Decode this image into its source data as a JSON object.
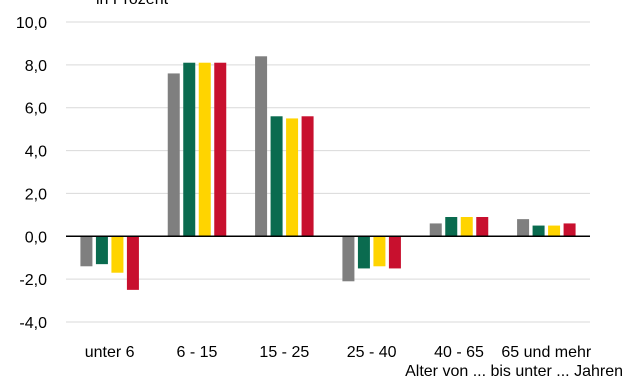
{
  "chart_data": {
    "type": "bar",
    "title": "in Prozent",
    "xlabel": "Alter von ... bis unter ... Jahren",
    "ylabel": "",
    "categories": [
      "unter 6",
      "6 - 15",
      "15 - 25",
      "25 - 40",
      "40 - 65",
      "65 und mehr"
    ],
    "series": [
      {
        "color": "#7f7f7f",
        "values": [
          -1.4,
          7.6,
          8.4,
          -2.1,
          0.6,
          0.8
        ]
      },
      {
        "color": "#0a6b4f",
        "values": [
          -1.3,
          8.1,
          5.6,
          -1.5,
          0.9,
          0.5
        ]
      },
      {
        "color": "#ffd400",
        "values": [
          -1.7,
          8.1,
          5.5,
          -1.4,
          0.9,
          0.5
        ]
      },
      {
        "color": "#c8102e",
        "values": [
          -2.5,
          8.1,
          5.6,
          -1.5,
          0.9,
          0.6
        ]
      }
    ],
    "ylim": [
      -4.0,
      10.0
    ],
    "yticks": [
      "10,0",
      "8,0",
      "6,0",
      "4,0",
      "2,0",
      "0,0",
      "-2,0",
      "-4,0"
    ],
    "yticks_values": [
      10,
      8,
      6,
      4,
      2,
      0,
      -2,
      -4
    ],
    "grid": true,
    "legend": "none"
  }
}
